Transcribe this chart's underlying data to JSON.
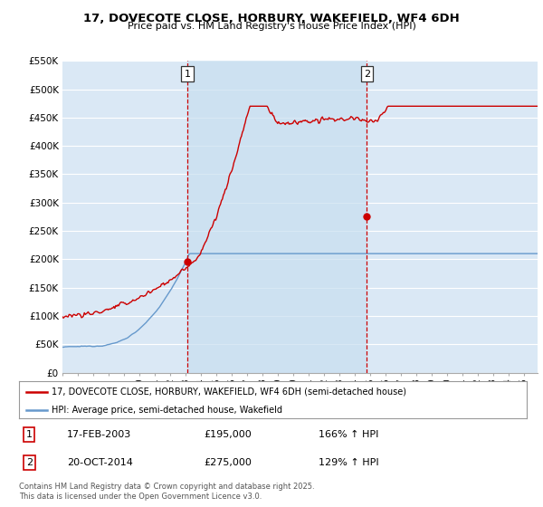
{
  "title": "17, DOVECOTE CLOSE, HORBURY, WAKEFIELD, WF4 6DH",
  "subtitle": "Price paid vs. HM Land Registry's House Price Index (HPI)",
  "ylabel_ticks": [
    "£0",
    "£50K",
    "£100K",
    "£150K",
    "£200K",
    "£250K",
    "£300K",
    "£350K",
    "£400K",
    "£450K",
    "£500K",
    "£550K"
  ],
  "ylim": [
    0,
    550000
  ],
  "yticks": [
    0,
    50000,
    100000,
    150000,
    200000,
    250000,
    300000,
    350000,
    400000,
    450000,
    500000,
    550000
  ],
  "sale1_date": "17-FEB-2003",
  "sale1_price": 195000,
  "sale1_hpi": "166% ↑ HPI",
  "sale2_date": "20-OCT-2014",
  "sale2_price": 275000,
  "sale2_hpi": "129% ↑ HPI",
  "sale1_year": 2003.12,
  "sale2_year": 2014.79,
  "legend1": "17, DOVECOTE CLOSE, HORBURY, WAKEFIELD, WF4 6DH (semi-detached house)",
  "legend2": "HPI: Average price, semi-detached house, Wakefield",
  "footnote": "Contains HM Land Registry data © Crown copyright and database right 2025.\nThis data is licensed under the Open Government Licence v3.0.",
  "line_color_red": "#cc0000",
  "line_color_blue": "#6699cc",
  "shade_color": "#dae8f5",
  "bg_color": "#dae8f5",
  "vline_color": "#cc0000",
  "grid_color": "#ffffff",
  "xmin": 1995,
  "xmax": 2025.9
}
